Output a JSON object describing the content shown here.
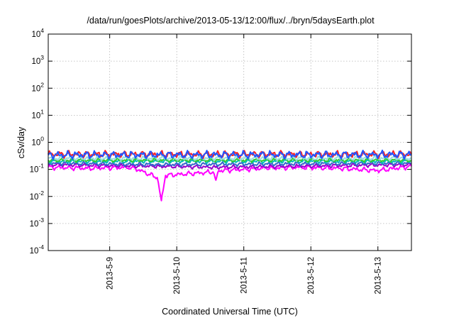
{
  "chart_data": {
    "type": "line",
    "title": "/data/run/goesPlots/archive/2013-05-13/12:00/flux/../bryn/5daysEarth.plot",
    "xlabel": "Coordinated Universal Time (UTC)",
    "ylabel": "cSv/day",
    "y_scale": "log",
    "ylim": [
      0.0001,
      10000
    ],
    "xlim": [
      "2013-05-08T02:00",
      "2013-05-13T12:00"
    ],
    "grid": true,
    "legend": "none",
    "x_ticks": [
      {
        "x": "2013-05-09T00:00",
        "label": "2013-5-9"
      },
      {
        "x": "2013-05-10T00:00",
        "label": "2013-5-10"
      },
      {
        "x": "2013-05-11T00:00",
        "label": "2013-5-11"
      },
      {
        "x": "2013-05-12T00:00",
        "label": "2013-5-12"
      },
      {
        "x": "2013-05-13T00:00",
        "label": "2013-5-13"
      }
    ],
    "y_ticks": [
      {
        "y": 0.0001,
        "base": "10",
        "exp": "-4"
      },
      {
        "y": 0.001,
        "base": "10",
        "exp": "-3"
      },
      {
        "y": 0.01,
        "base": "10",
        "exp": "-2"
      },
      {
        "y": 0.1,
        "base": "10",
        "exp": "-1"
      },
      {
        "y": 1,
        "base": "10",
        "exp": "0"
      },
      {
        "y": 10,
        "base": "10",
        "exp": "1"
      },
      {
        "y": 100,
        "base": "10",
        "exp": "2"
      },
      {
        "y": 1000,
        "base": "10",
        "exp": "3"
      },
      {
        "y": 10000,
        "base": "10",
        "exp": "4"
      }
    ],
    "series": [
      {
        "color": "#ff00ff",
        "base": 0.13,
        "jitter": 0.1,
        "points": [
          [
            "2013-05-08T02:00",
            0.12
          ],
          [
            "2013-05-08T16:00",
            0.11
          ],
          [
            "2013-05-09T08:00",
            0.12
          ],
          [
            "2013-05-09T17:00",
            0.05
          ],
          [
            "2013-05-09T18:30",
            0.007
          ],
          [
            "2013-05-09T20:00",
            0.06
          ],
          [
            "2013-05-10T13:00",
            0.08
          ],
          [
            "2013-05-10T14:00",
            0.04
          ],
          [
            "2013-05-10T15:00",
            0.09
          ],
          [
            "2013-05-11T08:00",
            0.11
          ],
          [
            "2013-05-11T19:00",
            0.12
          ],
          [
            "2013-05-12T10:00",
            0.11
          ],
          [
            "2013-05-13T00:00",
            0.09
          ],
          [
            "2013-05-13T12:00",
            0.13
          ]
        ]
      },
      {
        "color": "#9900cc",
        "base": 0.15,
        "jitter": 0.08,
        "points": [
          [
            "2013-05-08T02:00",
            0.15
          ],
          [
            "2013-05-09T18:00",
            0.13
          ],
          [
            "2013-05-10T14:00",
            0.12
          ],
          [
            "2013-05-13T12:00",
            0.15
          ]
        ]
      },
      {
        "color": "#3366cc",
        "base": 0.17,
        "jitter": 0.08,
        "points": [
          [
            "2013-05-08T02:00",
            0.17
          ],
          [
            "2013-05-09T18:00",
            0.15
          ],
          [
            "2013-05-13T12:00",
            0.17
          ]
        ]
      },
      {
        "color": "#00bbbb",
        "base": 0.2,
        "jitter": 0.08,
        "points": [
          [
            "2013-05-08T02:00",
            0.2
          ],
          [
            "2013-05-13T12:00",
            0.2
          ]
        ]
      },
      {
        "color": "#33cc33",
        "base": 0.22,
        "jitter": 0.08,
        "points": [
          [
            "2013-05-08T02:00",
            0.22
          ],
          [
            "2013-05-13T12:00",
            0.22
          ]
        ]
      },
      {
        "color": "#99dddd",
        "base": 0.26,
        "jitter": 0.09,
        "points": [
          [
            "2013-05-08T02:00",
            0.26
          ],
          [
            "2013-05-13T12:00",
            0.26
          ]
        ]
      },
      {
        "color": "#ff2222",
        "base": 0.34,
        "jitter": 0.14,
        "points": [
          [
            "2013-05-08T02:00",
            0.36
          ],
          [
            "2013-05-13T12:00",
            0.36
          ]
        ]
      },
      {
        "color": "#2255ff",
        "base": 0.33,
        "jitter": 0.16,
        "points": [
          [
            "2013-05-08T02:00",
            0.34
          ],
          [
            "2013-05-13T12:00",
            0.35
          ]
        ]
      }
    ]
  }
}
